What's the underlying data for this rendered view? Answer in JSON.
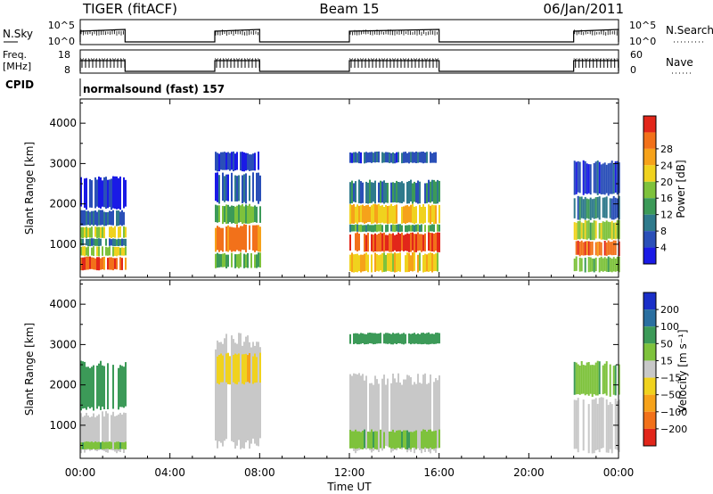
{
  "header": {
    "radar": "TIGER (fitACF)",
    "beam": "Beam 15",
    "date": "06/Jan/2011"
  },
  "nsky_panel": {
    "left_label": "N.Sky",
    "right_label": "N.Search",
    "left_ticks": [
      "10^5",
      "10^0"
    ],
    "right_ticks": [
      "10^5",
      "10^0"
    ]
  },
  "freq_panel": {
    "left_label_1": "Freq.",
    "left_label_2": "[MHz]",
    "right_label": "Nave",
    "left_ticks": [
      "18",
      "8"
    ],
    "right_ticks": [
      "60",
      "0"
    ]
  },
  "cpid": {
    "label": "CPID",
    "text": "normalsound (fast) 157"
  },
  "operating_intervals": [
    [
      0,
      2
    ],
    [
      6,
      8
    ],
    [
      12,
      16
    ],
    [
      22,
      24
    ]
  ],
  "chart_data": [
    {
      "type": "heatmap",
      "panel": "power",
      "ylabel": "Slant Range [km]",
      "ylim": [
        180,
        4600
      ],
      "yticks": [
        "1000",
        "2000",
        "3000",
        "4000"
      ],
      "xlim": [
        0,
        24
      ],
      "colorbar": {
        "label": "Power [dB]",
        "range": [
          0,
          32
        ],
        "ticks": [
          "4",
          "8",
          "12",
          "16",
          "20",
          "24",
          "28"
        ],
        "colors": [
          "#1a1ae6",
          "#2a4fb8",
          "#2f7a8c",
          "#3c9a58",
          "#7ec23c",
          "#f0d21e",
          "#f6a21a",
          "#f2711a",
          "#e2261a"
        ]
      },
      "echo_bands": [
        {
          "x": [
            0,
            2
          ],
          "y": [
            350,
            700
          ],
          "value": 27
        },
        {
          "x": [
            0,
            2
          ],
          "y": [
            700,
            950
          ],
          "value": 17
        },
        {
          "x": [
            0,
            2
          ],
          "y": [
            950,
            1150
          ],
          "value": 9
        },
        {
          "x": [
            0,
            2
          ],
          "y": [
            1150,
            1450
          ],
          "value": 18
        },
        {
          "x": [
            0,
            2
          ],
          "y": [
            1450,
            1850
          ],
          "value": 7
        },
        {
          "x": [
            0,
            2
          ],
          "y": [
            1850,
            2700
          ],
          "value": 3
        },
        {
          "x": [
            6,
            8
          ],
          "y": [
            400,
            800
          ],
          "value": 15
        },
        {
          "x": [
            6,
            8
          ],
          "y": [
            800,
            1500
          ],
          "value": 25
        },
        {
          "x": [
            6,
            8
          ],
          "y": [
            1500,
            2000
          ],
          "value": 14
        },
        {
          "x": [
            6,
            8
          ],
          "y": [
            2000,
            2800
          ],
          "value": 6
        },
        {
          "x": [
            6,
            8
          ],
          "y": [
            2800,
            3300
          ],
          "value": 4
        },
        {
          "x": [
            12,
            16
          ],
          "y": [
            300,
            800
          ],
          "value": 20
        },
        {
          "x": [
            12,
            16
          ],
          "y": [
            800,
            1300
          ],
          "value": 29
        },
        {
          "x": [
            12,
            16
          ],
          "y": [
            1300,
            1500
          ],
          "value": 13
        },
        {
          "x": [
            12,
            16
          ],
          "y": [
            1500,
            2000
          ],
          "value": 21
        },
        {
          "x": [
            12,
            16
          ],
          "y": [
            2000,
            2600
          ],
          "value": 9
        },
        {
          "x": [
            12,
            16
          ],
          "y": [
            3000,
            3300
          ],
          "value": 6
        },
        {
          "x": [
            22,
            24
          ],
          "y": [
            300,
            700
          ],
          "value": 16
        },
        {
          "x": [
            22,
            24
          ],
          "y": [
            700,
            1100
          ],
          "value": 27
        },
        {
          "x": [
            22,
            24
          ],
          "y": [
            1100,
            1600
          ],
          "value": 17
        },
        {
          "x": [
            22,
            24
          ],
          "y": [
            1600,
            2200
          ],
          "value": 9
        },
        {
          "x": [
            22,
            24
          ],
          "y": [
            2200,
            3100
          ],
          "value": 5
        }
      ]
    },
    {
      "type": "heatmap",
      "panel": "velocity",
      "ylabel": "Slant Range [km]",
      "xlabel": "Time UT",
      "ylim": [
        180,
        4600
      ],
      "yticks": [
        "1000",
        "2000",
        "3000",
        "4000"
      ],
      "xlim": [
        0,
        24
      ],
      "xticks": [
        "00:00",
        "04:00",
        "08:00",
        "12:00",
        "16:00",
        "20:00",
        "00:00"
      ],
      "colorbar": {
        "label": "Velocity [m s⁻¹]",
        "ticks": [
          "200",
          "100",
          "50",
          "15",
          "−15",
          "−50",
          "−100",
          "−200"
        ],
        "colors": [
          "#1a2fc8",
          "#2a6fa0",
          "#3c9a58",
          "#7ec23c",
          "#c8c8c8",
          "#f0d21e",
          "#f6a21a",
          "#f2711a",
          "#e2261a"
        ]
      },
      "echo_bands": [
        {
          "x": [
            0,
            2
          ],
          "y": [
            300,
            1350
          ],
          "value": 0
        },
        {
          "x": [
            0,
            2
          ],
          "y": [
            400,
            600
          ],
          "value": 30
        },
        {
          "x": [
            0,
            2
          ],
          "y": [
            1350,
            2600
          ],
          "value": 40
        },
        {
          "x": [
            6,
            8
          ],
          "y": [
            400,
            3300
          ],
          "value": 0
        },
        {
          "x": [
            6,
            8
          ],
          "y": [
            2000,
            2800
          ],
          "value": -30
        },
        {
          "x": [
            12,
            16
          ],
          "y": [
            300,
            2300
          ],
          "value": 0
        },
        {
          "x": [
            12,
            16
          ],
          "y": [
            400,
            900
          ],
          "value": 30
        },
        {
          "x": [
            12,
            16
          ],
          "y": [
            3000,
            3300
          ],
          "value": 40
        },
        {
          "x": [
            22,
            24
          ],
          "y": [
            300,
            1700
          ],
          "value": 0
        },
        {
          "x": [
            22,
            24
          ],
          "y": [
            1700,
            2600
          ],
          "value": 30
        }
      ]
    }
  ]
}
